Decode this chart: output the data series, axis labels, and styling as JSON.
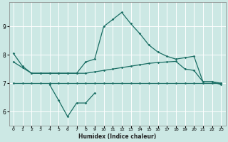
{
  "xlabel": "Humidex (Indice chaleur)",
  "bg_color": "#cce8e4",
  "grid_color": "#ffffff",
  "line_color": "#1a6e64",
  "x_ticks": [
    0,
    1,
    2,
    3,
    4,
    5,
    6,
    7,
    8,
    9,
    10,
    11,
    12,
    13,
    14,
    15,
    16,
    17,
    18,
    19,
    20,
    21,
    22,
    23
  ],
  "ylim": [
    5.5,
    9.85
  ],
  "xlim": [
    -0.5,
    23.5
  ],
  "y_ticks": [
    6,
    7,
    8,
    9
  ],
  "series1_x": [
    0,
    1,
    2,
    3,
    4,
    5,
    6,
    7,
    8,
    9,
    10,
    11,
    12,
    13,
    14,
    15,
    16,
    17,
    18,
    19,
    20,
    21,
    22,
    23
  ],
  "series1_y": [
    7.0,
    7.0,
    7.0,
    7.0,
    7.0,
    7.0,
    7.0,
    7.0,
    7.0,
    7.0,
    7.0,
    7.0,
    7.0,
    7.0,
    7.0,
    7.0,
    7.0,
    7.0,
    7.0,
    7.0,
    7.0,
    7.0,
    7.0,
    7.0
  ],
  "series2_x": [
    0,
    1,
    2,
    3,
    4,
    5,
    6,
    7,
    8,
    9,
    10,
    11,
    12,
    13,
    14,
    15,
    16,
    17,
    18,
    19,
    20,
    21,
    22,
    23
  ],
  "series2_y": [
    7.75,
    7.55,
    7.35,
    7.35,
    7.35,
    7.35,
    7.35,
    7.35,
    7.35,
    7.4,
    7.45,
    7.5,
    7.55,
    7.6,
    7.65,
    7.7,
    7.73,
    7.75,
    7.77,
    7.5,
    7.45,
    7.05,
    7.05,
    7.0
  ],
  "series3_x": [
    0,
    1,
    2,
    3,
    4,
    5,
    6,
    7,
    8,
    9,
    10,
    11,
    12,
    13,
    14,
    15,
    16,
    17,
    18,
    19,
    20,
    21,
    22,
    23
  ],
  "series3_y": [
    8.05,
    7.6,
    7.35,
    7.35,
    7.35,
    7.35,
    7.35,
    7.35,
    7.75,
    7.85,
    9.0,
    9.25,
    9.5,
    9.1,
    8.75,
    8.35,
    8.1,
    7.95,
    7.85,
    7.9,
    7.95,
    7.05,
    7.05,
    6.95
  ],
  "series4_x": [
    4,
    5,
    6,
    7,
    8,
    9
  ],
  "series4_y": [
    6.95,
    6.4,
    5.82,
    6.3,
    6.3,
    6.65
  ]
}
